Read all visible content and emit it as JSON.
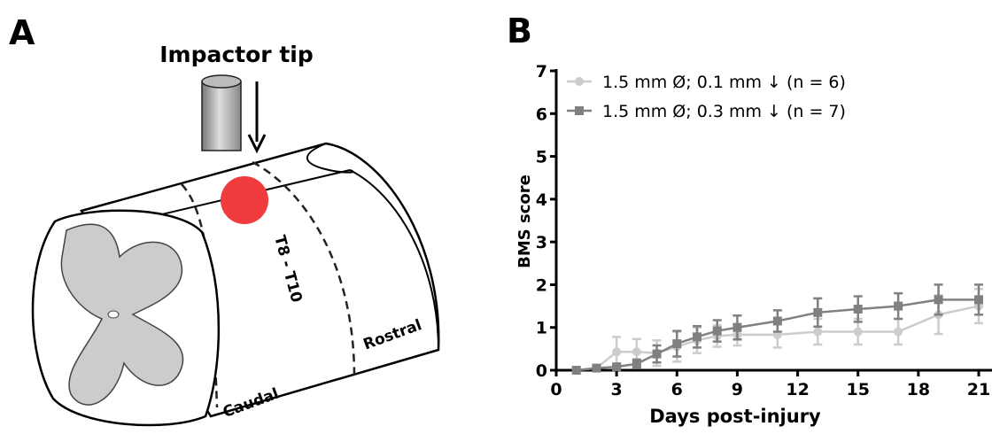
{
  "figure": {
    "panel_a_label": "A",
    "panel_b_label": "B",
    "diagram": {
      "impactor_label": "Impactor tip",
      "segment_label": "T8 - T10",
      "caudal_label": "Caudal",
      "rostral_label": "Rostral"
    }
  },
  "chart_data": {
    "type": "line",
    "xlabel": "Days post-injury",
    "ylabel": "BMS score",
    "x": [
      1,
      2,
      3,
      4,
      5,
      6,
      7,
      8,
      9,
      11,
      13,
      15,
      17,
      19,
      21
    ],
    "series": [
      {
        "name": "1.5 mm Ø; 0.1 mm ↓ (n = 6)",
        "color": "#cccccc",
        "marker": "circle",
        "values": [
          0,
          0.05,
          0.43,
          0.43,
          0.4,
          0.55,
          0.7,
          0.8,
          0.83,
          0.83,
          0.9,
          0.9,
          0.9,
          1.3,
          1.5
        ],
        "errors": [
          0,
          0,
          0.35,
          0.3,
          0.3,
          0.35,
          0.3,
          0.25,
          0.25,
          0.3,
          0.3,
          0.3,
          0.3,
          0.45,
          0.4
        ]
      },
      {
        "name": "1.5 mm Ø; 0.3 mm ↓ (n = 7)",
        "color": "#808080",
        "marker": "square",
        "values": [
          0,
          0.05,
          0.08,
          0.15,
          0.38,
          0.62,
          0.78,
          0.92,
          1.0,
          1.15,
          1.35,
          1.43,
          1.5,
          1.65,
          1.65
        ],
        "errors": [
          0,
          0.05,
          0.05,
          0.1,
          0.2,
          0.3,
          0.25,
          0.25,
          0.28,
          0.25,
          0.33,
          0.3,
          0.3,
          0.35,
          0.35
        ]
      }
    ],
    "xlim": [
      0,
      21
    ],
    "ylim": [
      0,
      7
    ],
    "xticks": [
      0,
      3,
      6,
      9,
      12,
      15,
      18,
      21
    ],
    "yticks": [
      0,
      1,
      2,
      3,
      4,
      5,
      6,
      7
    ],
    "legend": "top-left"
  }
}
